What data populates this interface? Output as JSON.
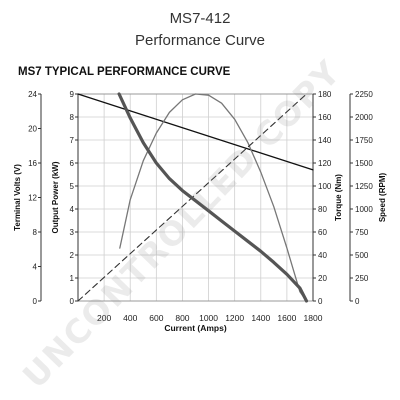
{
  "header": {
    "model": "MS7-412",
    "subtitle": "Performance Curve",
    "chart_title": "MS7 TYPICAL PERFORMANCE CURVE"
  },
  "watermark": "UNCONTROLLED COPY",
  "chart_data": {
    "type": "line",
    "title": "MS7 TYPICAL PERFORMANCE CURVE",
    "xlabel": "Current (Amps)",
    "x_ticks": [
      0,
      200,
      400,
      600,
      800,
      1000,
      1200,
      1400,
      1600,
      1800
    ],
    "xlim": [
      0,
      1800
    ],
    "grid": true,
    "axes": [
      {
        "key": "volts",
        "label": "Terminal Volts (V)",
        "side": "left-outer",
        "ylim": [
          0,
          24
        ],
        "ticks": [
          0,
          4,
          8,
          12,
          16,
          20,
          24
        ]
      },
      {
        "key": "power",
        "label": "Output Power (kW)",
        "side": "left-inner",
        "ylim": [
          0,
          9
        ],
        "ticks": [
          0,
          1,
          2,
          3,
          4,
          5,
          6,
          7,
          8,
          9
        ]
      },
      {
        "key": "torque",
        "label": "Torque (Nm)",
        "side": "right-inner",
        "ylim": [
          0,
          180
        ],
        "ticks": [
          0,
          20,
          40,
          60,
          80,
          100,
          120,
          140,
          160,
          180
        ]
      },
      {
        "key": "speed",
        "label": "Speed (RPM)",
        "side": "right-outer",
        "ylim": [
          0,
          2250
        ],
        "ticks": [
          0,
          250,
          500,
          750,
          1000,
          1250,
          1500,
          1750,
          2000,
          2250
        ]
      }
    ],
    "series": [
      {
        "key": "volts-line",
        "axis": "volts",
        "color": "#111111",
        "width": 1.3,
        "dash": "",
        "x": [
          0,
          1800
        ],
        "y": [
          24,
          15.2
        ]
      },
      {
        "key": "power-curve",
        "axis": "power",
        "color": "#777777",
        "width": 1.3,
        "dash": "",
        "x": [
          320,
          400,
          500,
          600,
          700,
          800,
          900,
          1000,
          1100,
          1200,
          1300,
          1400,
          1500,
          1600,
          1700,
          1750
        ],
        "y": [
          2.3,
          4.4,
          6.1,
          7.3,
          8.2,
          8.75,
          9.0,
          8.95,
          8.6,
          7.9,
          6.9,
          5.6,
          4.1,
          2.3,
          0.4,
          0
        ]
      },
      {
        "key": "torque-line",
        "axis": "torque",
        "color": "#333333",
        "width": 1.1,
        "dash": "6,4",
        "x": [
          0,
          1750
        ],
        "y": [
          0,
          180
        ]
      },
      {
        "key": "speed-curve",
        "axis": "speed",
        "color": "#555555",
        "width": 3.2,
        "dash": "",
        "x": [
          315,
          400,
          500,
          600,
          700,
          800,
          900,
          1000,
          1100,
          1200,
          1300,
          1400,
          1500,
          1600,
          1700,
          1750
        ],
        "y": [
          2250,
          1990,
          1720,
          1500,
          1330,
          1200,
          1090,
          980,
          870,
          760,
          650,
          540,
          420,
          290,
          140,
          0
        ]
      }
    ]
  }
}
